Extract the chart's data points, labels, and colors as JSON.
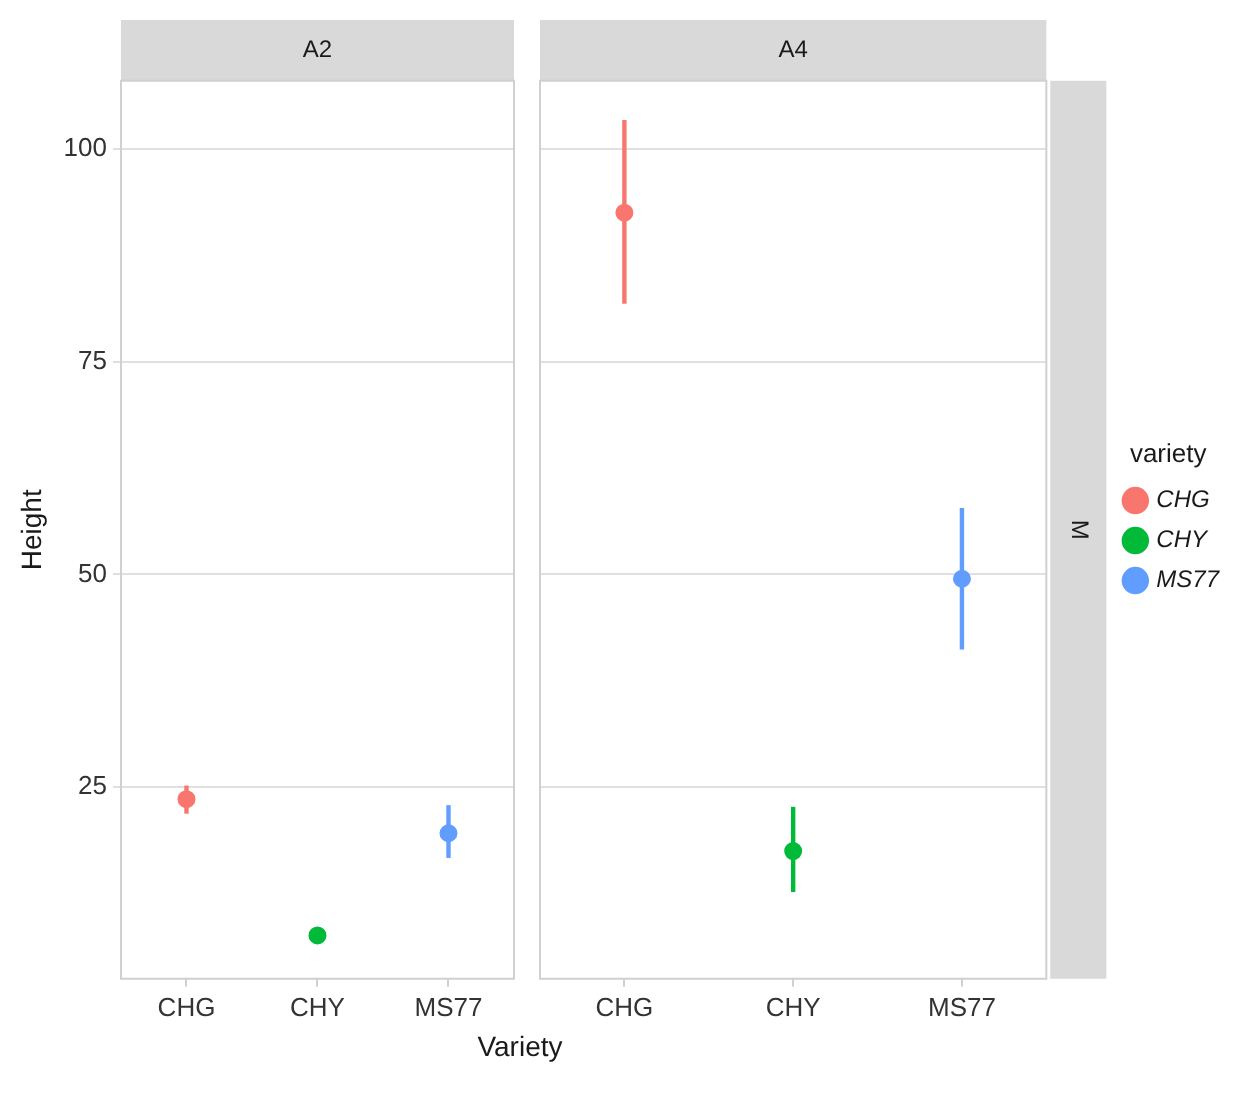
{
  "chart_data": [
    {
      "type": "scatter",
      "title": "A2",
      "ylabel": "Height",
      "xlabel": "Variety",
      "categories": [
        "CHG",
        "CHY",
        "MS77"
      ],
      "series": [
        {
          "color": "#f8766d",
          "x": [
            "CHG"
          ],
          "values": [
            23.6
          ],
          "errors": [
            [
              21.9,
              25.2
            ]
          ]
        },
        {
          "color": "#00ba38",
          "x": [
            "CHY"
          ],
          "values": [
            7.6
          ]
        },
        {
          "color": "#619cff",
          "x": [
            "MS77"
          ],
          "values": [
            19.6
          ],
          "errors": [
            [
              16.7,
              22.9
            ]
          ]
        }
      ],
      "ylim": [
        2.5,
        108
      ],
      "yticks": [
        25,
        50,
        75,
        100
      ],
      "grid": "y",
      "marker": "circle"
    },
    {
      "type": "scatter",
      "title": "A4",
      "annotations": [
        "M"
      ],
      "categories": [
        "CHG",
        "CHY",
        "MS77"
      ],
      "series": [
        {
          "name": "CHG",
          "color": "#f8766d",
          "x": [
            "CHG"
          ],
          "values": [
            92.5
          ],
          "errors": [
            [
              81.8,
              103.4
            ]
          ]
        },
        {
          "name": "CHY",
          "color": "#00ba38",
          "x": [
            "CHY"
          ],
          "values": [
            17.5
          ],
          "errors": [
            [
              12.7,
              22.7
            ]
          ]
        },
        {
          "name": "MS77",
          "color": "#619cff",
          "x": [
            "MS77"
          ],
          "values": [
            49.5
          ],
          "errors": [
            [
              41.2,
              57.8
            ]
          ]
        }
      ],
      "ylim": [
        2.5,
        108
      ],
      "yticks": [
        25,
        50,
        75,
        100
      ],
      "grid": "y",
      "marker": "circle",
      "tick_labels": "x",
      "legend": "right",
      "legend_title": "variety"
    }
  ]
}
